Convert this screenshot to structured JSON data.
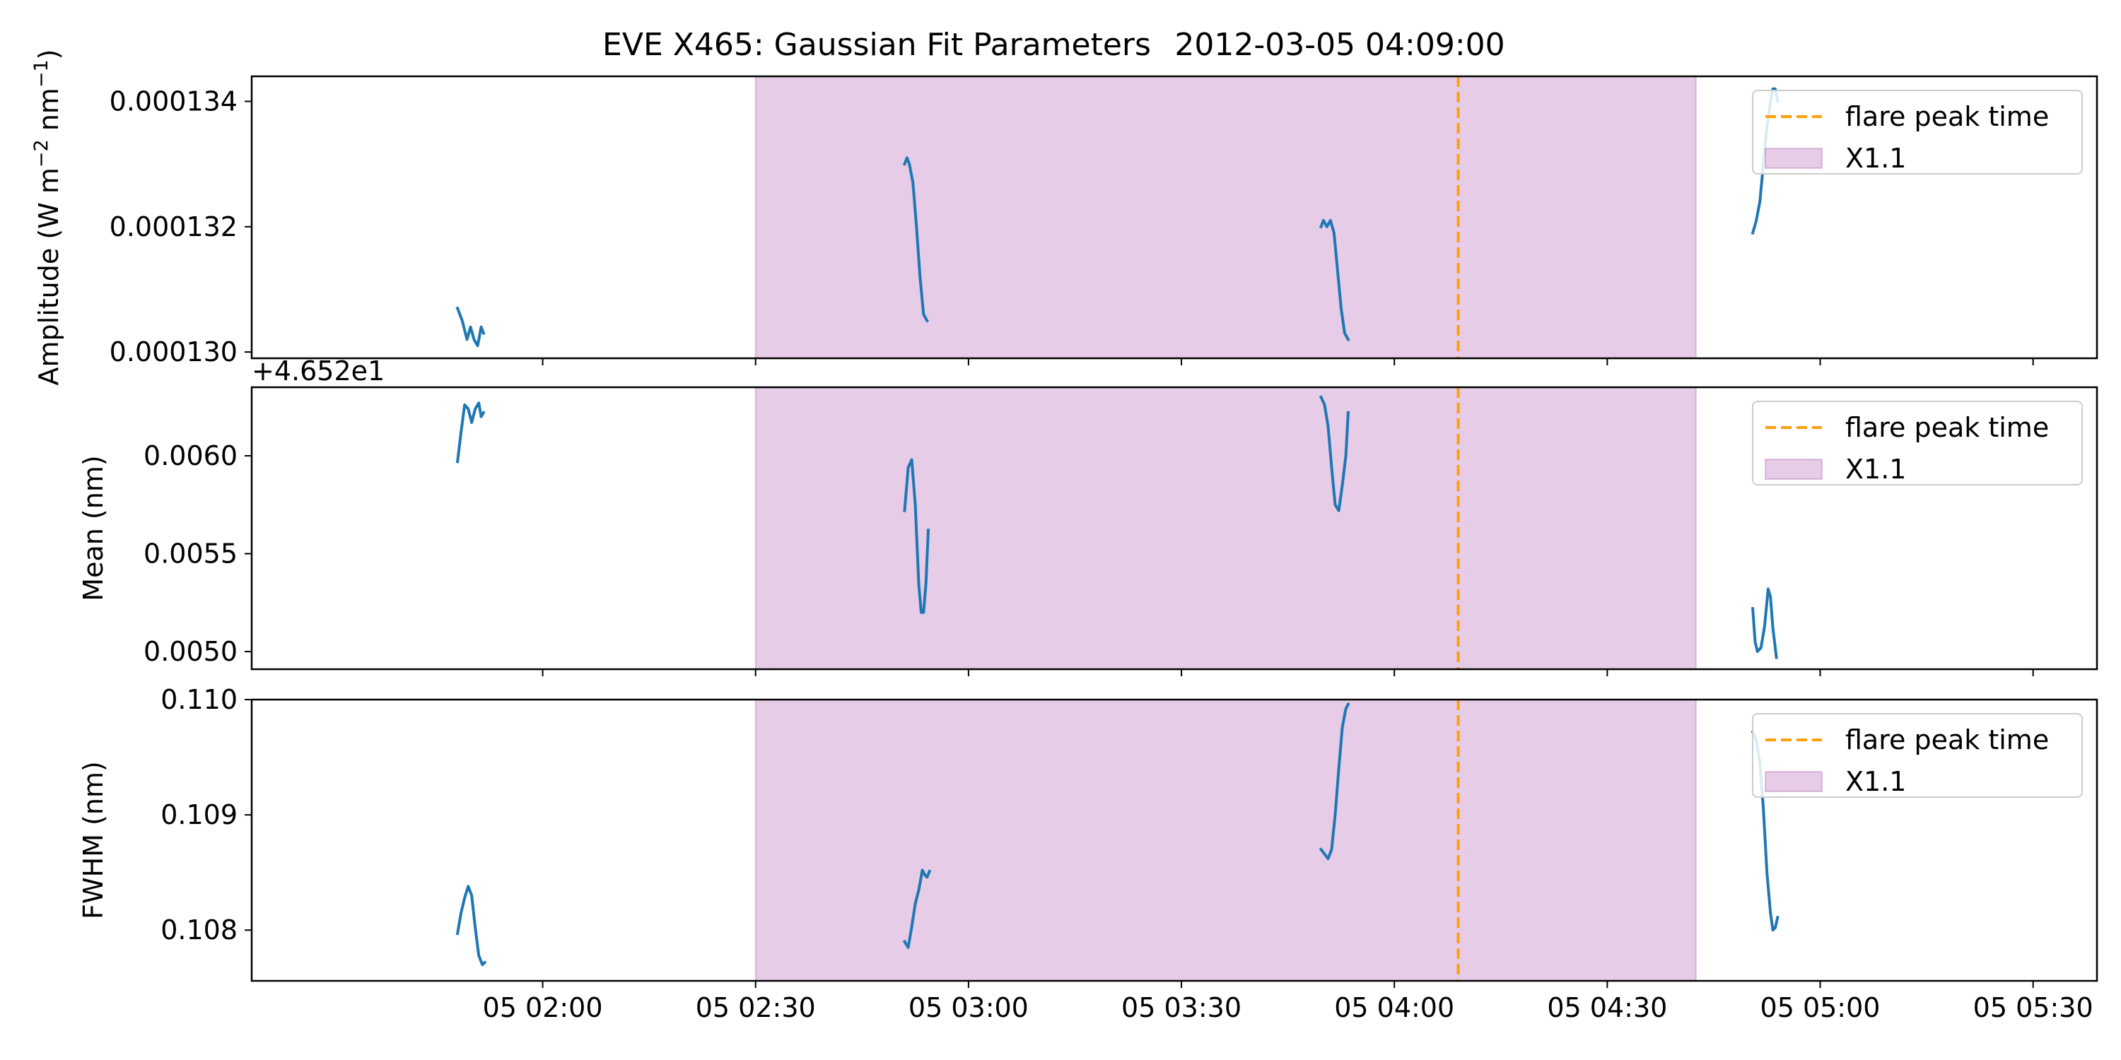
{
  "chart_data": {
    "type": "line",
    "title": "EVE X465: Gaussian Fit Parameters",
    "title_time": "2012-03-05 04:09:00",
    "colors": {
      "series": "#1f77b4",
      "flare_peak": "#ff9f0e",
      "flare_region": "#800080"
    },
    "x_axis": {
      "type": "time",
      "range": [
        "2012-03-05 01:19:00",
        "2012-03-05 05:39:00"
      ],
      "ticks": [
        "2012-03-05 02:00",
        "2012-03-05 02:30",
        "2012-03-05 03:00",
        "2012-03-05 03:30",
        "2012-03-05 04:00",
        "2012-03-05 04:30",
        "2012-03-05 05:00",
        "2012-03-05 05:30"
      ],
      "tick_labels": [
        "05 02:00",
        "05 02:30",
        "05 03:00",
        "05 03:30",
        "05 04:00",
        "05 04:30",
        "05 05:00",
        "05 05:30"
      ]
    },
    "flare_peak_time": "2012-03-05 04:09:00",
    "flare_span": [
      "2012-03-05 02:30:00",
      "2012-03-05 04:42:30"
    ],
    "legend": {
      "placement": "top-right",
      "peak_label": "flare peak time",
      "span_label": "X1.1"
    },
    "grid": false,
    "panels": [
      {
        "ylabel": "Amplitude (W m$^{-2}$ nm$^{-1}$)",
        "ylim": [
          0.0001299,
          0.0001344
        ],
        "yticks": [
          0.00013,
          0.000132,
          0.000134
        ],
        "ytick_labels": [
          "0.000130",
          "0.000132",
          "0.000134"
        ],
        "offset_text": "",
        "segments": [
          {
            "x": [
              "2012-03-05 01:48:00",
              "2012-03-05 01:48:40",
              "2012-03-05 01:49:20",
              "2012-03-05 01:49:50",
              "2012-03-05 01:50:20",
              "2012-03-05 01:50:50",
              "2012-03-05 01:51:20",
              "2012-03-05 01:51:40"
            ],
            "y": [
              0.0001307,
              0.0001305,
              0.0001302,
              0.0001304,
              0.0001302,
              0.0001301,
              0.0001304,
              0.0001303
            ]
          },
          {
            "x": [
              "2012-03-05 02:51:00",
              "2012-03-05 02:51:20",
              "2012-03-05 02:51:40",
              "2012-03-05 02:52:10",
              "2012-03-05 02:52:40",
              "2012-03-05 02:53:10",
              "2012-03-05 02:53:40",
              "2012-03-05 02:54:10"
            ],
            "y": [
              0.000133,
              0.0001331,
              0.000133,
              0.0001327,
              0.000132,
              0.0001312,
              0.0001306,
              0.0001305
            ]
          },
          {
            "x": [
              "2012-03-05 03:49:40",
              "2012-03-05 03:50:00",
              "2012-03-05 03:50:30",
              "2012-03-05 03:51:00",
              "2012-03-05 03:51:30",
              "2012-03-05 03:52:00",
              "2012-03-05 03:52:30",
              "2012-03-05 03:53:00",
              "2012-03-05 03:53:30"
            ],
            "y": [
              0.000132,
              0.0001321,
              0.000132,
              0.0001321,
              0.0001319,
              0.0001313,
              0.0001307,
              0.0001303,
              0.0001302
            ]
          },
          {
            "x": [
              "2012-03-05 04:50:30",
              "2012-03-05 04:51:00",
              "2012-03-05 04:51:30",
              "2012-03-05 04:52:00",
              "2012-03-05 04:52:30",
              "2012-03-05 04:53:00",
              "2012-03-05 04:53:20",
              "2012-03-05 04:53:40",
              "2012-03-05 04:54:00"
            ],
            "y": [
              0.0001319,
              0.0001321,
              0.0001324,
              0.000133,
              0.0001336,
              0.000134,
              0.0001342,
              0.0001342,
              0.000134
            ]
          }
        ]
      },
      {
        "ylabel": "Mean (nm)",
        "ylim": [
          0.00491,
          0.00635
        ],
        "yticks": [
          0.005,
          0.0055,
          0.006
        ],
        "ytick_labels": [
          "0.0050",
          "0.0055",
          "0.0060"
        ],
        "offset_text": "+4.652e1",
        "segments": [
          {
            "x": [
              "2012-03-05 01:48:00",
              "2012-03-05 01:48:30",
              "2012-03-05 01:49:00",
              "2012-03-05 01:49:30",
              "2012-03-05 01:50:00",
              "2012-03-05 01:50:30",
              "2012-03-05 01:51:00",
              "2012-03-05 01:51:20",
              "2012-03-05 01:51:40"
            ],
            "y": [
              0.00597,
              0.00612,
              0.00626,
              0.00624,
              0.00617,
              0.00624,
              0.00627,
              0.0062,
              0.00622
            ]
          },
          {
            "x": [
              "2012-03-05 02:51:00",
              "2012-03-05 02:51:30",
              "2012-03-05 02:52:00",
              "2012-03-05 02:52:30",
              "2012-03-05 02:53:00",
              "2012-03-05 02:53:20",
              "2012-03-05 02:53:40",
              "2012-03-05 02:54:00",
              "2012-03-05 02:54:20"
            ],
            "y": [
              0.00572,
              0.00594,
              0.00598,
              0.00575,
              0.00534,
              0.0052,
              0.0052,
              0.00535,
              0.00562
            ]
          },
          {
            "x": [
              "2012-03-05 03:49:40",
              "2012-03-05 03:50:10",
              "2012-03-05 03:50:40",
              "2012-03-05 03:51:10",
              "2012-03-05 03:51:40",
              "2012-03-05 03:52:10",
              "2012-03-05 03:52:40",
              "2012-03-05 03:53:10",
              "2012-03-05 03:53:30"
            ],
            "y": [
              0.0063,
              0.00626,
              0.00615,
              0.00594,
              0.00575,
              0.00572,
              0.00585,
              0.006,
              0.00622
            ]
          },
          {
            "x": [
              "2012-03-05 04:50:30",
              "2012-03-05 04:50:50",
              "2012-03-05 04:51:10",
              "2012-03-05 04:51:40",
              "2012-03-05 04:52:10",
              "2012-03-05 04:52:40",
              "2012-03-05 04:53:00",
              "2012-03-05 04:53:20",
              "2012-03-05 04:53:50"
            ],
            "y": [
              0.00522,
              0.00505,
              0.005,
              0.00502,
              0.00513,
              0.00532,
              0.00528,
              0.00512,
              0.00497
            ]
          }
        ]
      },
      {
        "ylabel": "FWHM (nm)",
        "ylim": [
          0.10756,
          0.11
        ],
        "yticks": [
          0.108,
          0.109,
          0.11
        ],
        "ytick_labels": [
          "0.108",
          "0.109",
          "0.110"
        ],
        "offset_text": "",
        "segments": [
          {
            "x": [
              "2012-03-05 01:48:00",
              "2012-03-05 01:48:30",
              "2012-03-05 01:49:00",
              "2012-03-05 01:49:30",
              "2012-03-05 01:50:00",
              "2012-03-05 01:50:30",
              "2012-03-05 01:51:00",
              "2012-03-05 01:51:30",
              "2012-03-05 01:51:50"
            ],
            "y": [
              0.10797,
              0.10815,
              0.10828,
              0.10838,
              0.1083,
              0.10802,
              0.10778,
              0.1077,
              0.10772
            ]
          },
          {
            "x": [
              "2012-03-05 02:51:00",
              "2012-03-05 02:51:30",
              "2012-03-05 02:52:00",
              "2012-03-05 02:52:30",
              "2012-03-05 02:53:00",
              "2012-03-05 02:53:30",
              "2012-03-05 02:53:50",
              "2012-03-05 02:54:10",
              "2012-03-05 02:54:30"
            ],
            "y": [
              0.1079,
              0.10785,
              0.10803,
              0.10823,
              0.10835,
              0.10852,
              0.10848,
              0.10846,
              0.10851
            ]
          },
          {
            "x": [
              "2012-03-05 03:49:40",
              "2012-03-05 03:50:10",
              "2012-03-05 03:50:40",
              "2012-03-05 03:51:10",
              "2012-03-05 03:51:40",
              "2012-03-05 03:52:10",
              "2012-03-05 03:52:40",
              "2012-03-05 03:53:10",
              "2012-03-05 03:53:30"
            ],
            "y": [
              0.1087,
              0.10866,
              0.10862,
              0.1087,
              0.109,
              0.1094,
              0.10976,
              0.10992,
              0.10996
            ]
          },
          {
            "x": [
              "2012-03-05 04:50:30",
              "2012-03-05 04:51:00",
              "2012-03-05 04:51:30",
              "2012-03-05 04:52:00",
              "2012-03-05 04:52:30",
              "2012-03-05 04:53:00",
              "2012-03-05 04:53:20",
              "2012-03-05 04:53:40",
              "2012-03-05 04:54:00"
            ],
            "y": [
              0.10972,
              0.10965,
              0.10945,
              0.10905,
              0.1085,
              0.10815,
              0.108,
              0.10802,
              0.10811
            ]
          }
        ]
      }
    ]
  }
}
